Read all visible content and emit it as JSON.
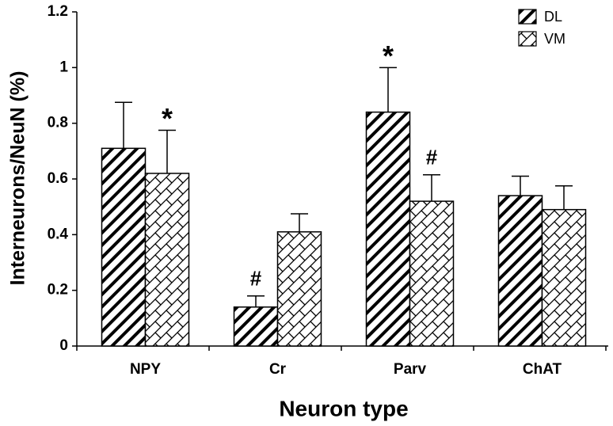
{
  "chart_data": {
    "type": "bar",
    "xlabel": "Neuron type",
    "ylabel": "Interneurons/NeuN (%)",
    "categories": [
      "NPY",
      "Cr",
      "Parv",
      "ChAT"
    ],
    "series": [
      {
        "name": "DL",
        "color": "#000000",
        "hatch": "diagonal",
        "values": [
          0.71,
          0.14,
          0.84,
          0.54
        ],
        "errors": [
          0.165,
          0.04,
          0.16,
          0.07
        ],
        "markers": [
          null,
          "#",
          "*",
          null
        ]
      },
      {
        "name": "VM",
        "color": "#000000",
        "hatch": "crosshatch",
        "values": [
          0.62,
          0.41,
          0.52,
          0.49
        ],
        "errors": [
          0.155,
          0.065,
          0.095,
          0.085
        ],
        "markers": [
          "*",
          null,
          "#",
          null
        ]
      }
    ],
    "ylim": [
      0,
      1.2
    ],
    "yticks": [
      0,
      0.2,
      0.4,
      0.6,
      0.8,
      1,
      1.2
    ],
    "grid": false,
    "legend": "top-right"
  }
}
